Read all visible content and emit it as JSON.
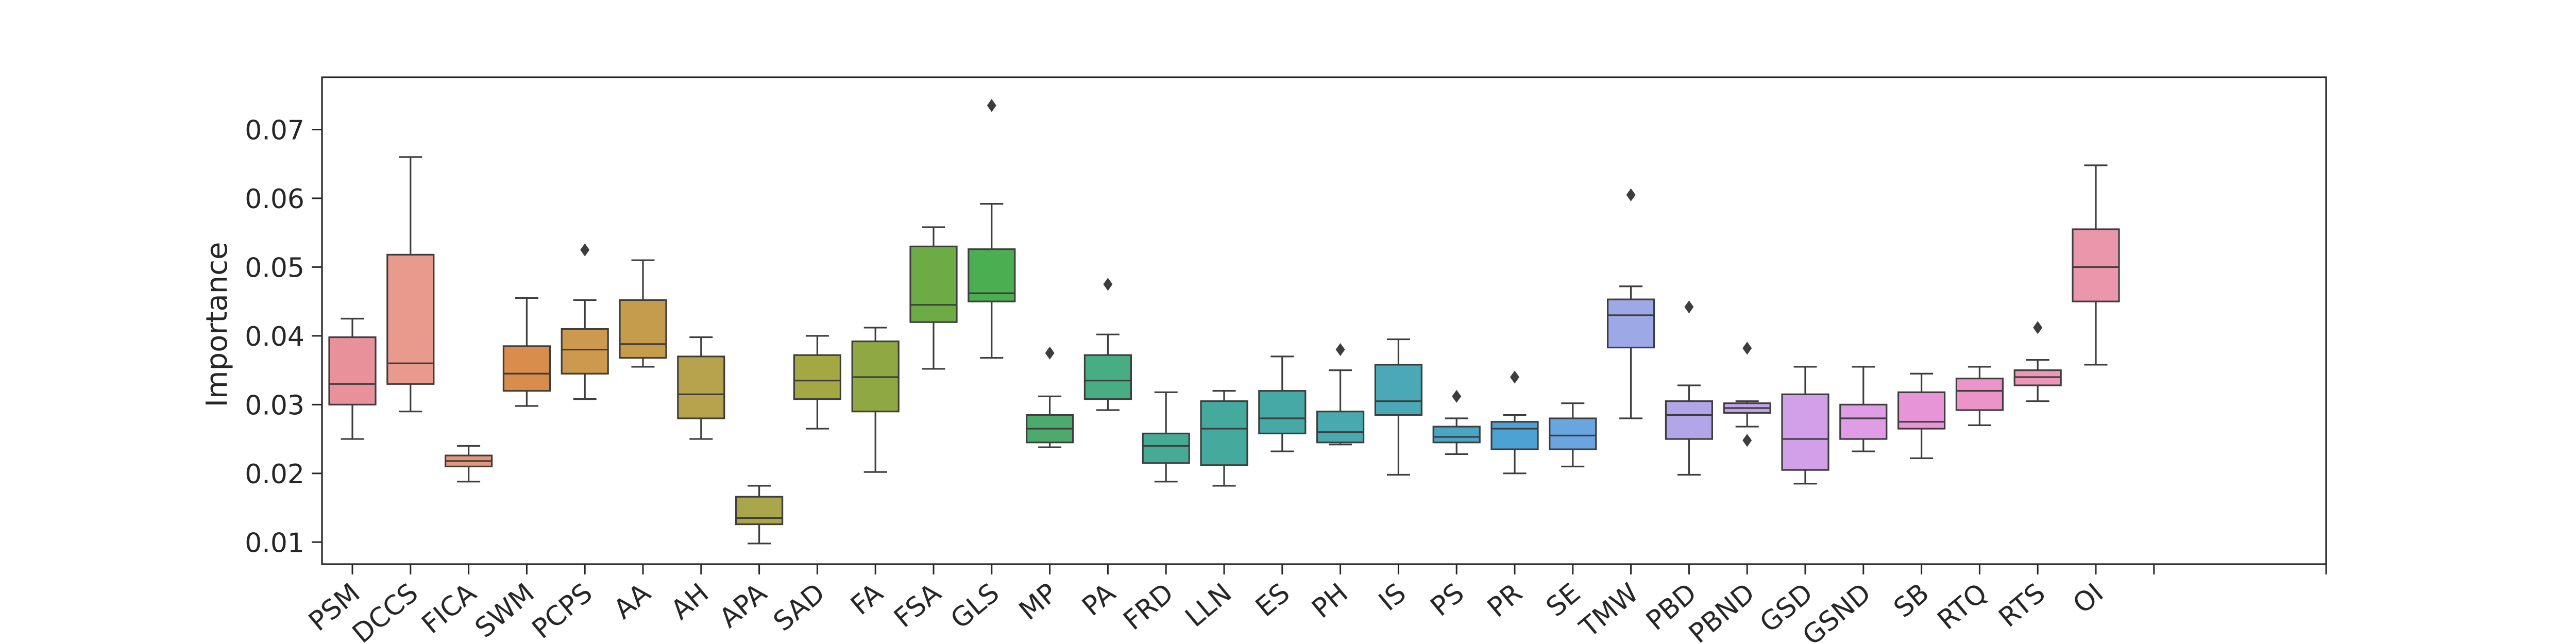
{
  "chart_data": {
    "type": "box",
    "ylabel": "Importance",
    "xlabel": "",
    "ylim": [
      0.0068,
      0.0776
    ],
    "yticks": [
      0.01,
      0.02,
      0.03,
      0.04,
      0.05,
      0.06,
      0.07
    ],
    "grid": false,
    "categories": [
      {
        "name": "PSM",
        "q1": 0.03,
        "median": 0.033,
        "q3": 0.0398,
        "wlo": 0.025,
        "whi": 0.0425,
        "fliers": [],
        "color": "#e8919b"
      },
      {
        "name": "DCCS",
        "q1": 0.033,
        "median": 0.036,
        "q3": 0.0518,
        "wlo": 0.029,
        "whi": 0.066,
        "fliers": [],
        "color": "#e89a8d"
      },
      {
        "name": "FICA",
        "q1": 0.021,
        "median": 0.0218,
        "q3": 0.0226,
        "wlo": 0.0188,
        "whi": 0.024,
        "fliers": [],
        "color": "#e2977a"
      },
      {
        "name": "SWM",
        "q1": 0.032,
        "median": 0.0345,
        "q3": 0.0385,
        "wlo": 0.0298,
        "whi": 0.0455,
        "fliers": [],
        "color": "#d98d4c"
      },
      {
        "name": "PCPS",
        "q1": 0.0345,
        "median": 0.038,
        "q3": 0.041,
        "wlo": 0.0308,
        "whi": 0.0452,
        "fliers": [
          0.0525
        ],
        "color": "#cc994f"
      },
      {
        "name": "AA",
        "q1": 0.0368,
        "median": 0.0388,
        "q3": 0.0452,
        "wlo": 0.0355,
        "whi": 0.051,
        "fliers": [],
        "color": "#c59c4b"
      },
      {
        "name": "AH",
        "q1": 0.028,
        "median": 0.0315,
        "q3": 0.037,
        "wlo": 0.025,
        "whi": 0.0398,
        "fliers": [],
        "color": "#b7a24e"
      },
      {
        "name": "APA",
        "q1": 0.0126,
        "median": 0.0135,
        "q3": 0.0166,
        "wlo": 0.0098,
        "whi": 0.0182,
        "fliers": [],
        "color": "#aaa64c"
      },
      {
        "name": "SAD",
        "q1": 0.0308,
        "median": 0.0335,
        "q3": 0.0372,
        "wlo": 0.0265,
        "whi": 0.04,
        "fliers": [],
        "color": "#a3a843"
      },
      {
        "name": "FA",
        "q1": 0.029,
        "median": 0.034,
        "q3": 0.0392,
        "wlo": 0.0202,
        "whi": 0.0412,
        "fliers": [],
        "color": "#8fa844"
      },
      {
        "name": "FSA",
        "q1": 0.042,
        "median": 0.0445,
        "q3": 0.053,
        "wlo": 0.0352,
        "whi": 0.0558,
        "fliers": [],
        "color": "#6dab45"
      },
      {
        "name": "GLS",
        "q1": 0.045,
        "median": 0.0462,
        "q3": 0.0526,
        "wlo": 0.0368,
        "whi": 0.0592,
        "fliers": [
          0.0735
        ],
        "color": "#4bae51"
      },
      {
        "name": "MP",
        "q1": 0.0245,
        "median": 0.0265,
        "q3": 0.0285,
        "wlo": 0.0238,
        "whi": 0.0312,
        "fliers": [
          0.0375
        ],
        "color": "#4baa6c"
      },
      {
        "name": "PA",
        "q1": 0.0308,
        "median": 0.0335,
        "q3": 0.0372,
        "wlo": 0.0292,
        "whi": 0.0402,
        "fliers": [
          0.0475
        ],
        "color": "#48ad82"
      },
      {
        "name": "FRD",
        "q1": 0.0215,
        "median": 0.024,
        "q3": 0.0258,
        "wlo": 0.0188,
        "whi": 0.0318,
        "fliers": [],
        "color": "#47aa94"
      },
      {
        "name": "LLN",
        "q1": 0.0212,
        "median": 0.0265,
        "q3": 0.0305,
        "wlo": 0.0182,
        "whi": 0.032,
        "fliers": [],
        "color": "#44aa9d"
      },
      {
        "name": "ES",
        "q1": 0.0258,
        "median": 0.028,
        "q3": 0.032,
        "wlo": 0.0232,
        "whi": 0.037,
        "fliers": [],
        "color": "#46a9a5"
      },
      {
        "name": "PH",
        "q1": 0.0245,
        "median": 0.026,
        "q3": 0.029,
        "wlo": 0.0242,
        "whi": 0.035,
        "fliers": [
          0.038
        ],
        "color": "#48a9ae"
      },
      {
        "name": "IS",
        "q1": 0.0285,
        "median": 0.0305,
        "q3": 0.0358,
        "wlo": 0.0198,
        "whi": 0.0395,
        "fliers": [],
        "color": "#4aa8b7"
      },
      {
        "name": "PS",
        "q1": 0.0245,
        "median": 0.0253,
        "q3": 0.0268,
        "wlo": 0.0228,
        "whi": 0.028,
        "fliers": [
          0.0312
        ],
        "color": "#4aa6c4"
      },
      {
        "name": "PR",
        "q1": 0.0235,
        "median": 0.0265,
        "q3": 0.0275,
        "wlo": 0.02,
        "whi": 0.0285,
        "fliers": [
          0.034
        ],
        "color": "#4ca2d3"
      },
      {
        "name": "SE",
        "q1": 0.0235,
        "median": 0.0255,
        "q3": 0.028,
        "wlo": 0.021,
        "whi": 0.0302,
        "fliers": [],
        "color": "#6aa5e0"
      },
      {
        "name": "TMW",
        "q1": 0.0383,
        "median": 0.043,
        "q3": 0.0453,
        "wlo": 0.028,
        "whi": 0.0472,
        "fliers": [
          0.0605
        ],
        "color": "#9da8e6"
      },
      {
        "name": "PBD",
        "q1": 0.025,
        "median": 0.0285,
        "q3": 0.0305,
        "wlo": 0.0198,
        "whi": 0.0328,
        "fliers": [
          0.0442
        ],
        "color": "#b3a6e8"
      },
      {
        "name": "PBND",
        "q1": 0.0288,
        "median": 0.0295,
        "q3": 0.0302,
        "wlo": 0.0268,
        "whi": 0.0305,
        "fliers": [
          0.0382,
          0.0248
        ],
        "color": "#c3a2e8"
      },
      {
        "name": "GSD",
        "q1": 0.0205,
        "median": 0.025,
        "q3": 0.0315,
        "wlo": 0.0185,
        "whi": 0.0355,
        "fliers": [],
        "color": "#d2a0e8"
      },
      {
        "name": "GSND",
        "q1": 0.025,
        "median": 0.028,
        "q3": 0.03,
        "wlo": 0.0232,
        "whi": 0.0355,
        "fliers": [],
        "color": "#de9de4"
      },
      {
        "name": "SB",
        "q1": 0.0265,
        "median": 0.0275,
        "q3": 0.0318,
        "wlo": 0.0222,
        "whi": 0.0345,
        "fliers": [],
        "color": "#e895d8"
      },
      {
        "name": "RTQ",
        "q1": 0.0292,
        "median": 0.032,
        "q3": 0.0338,
        "wlo": 0.027,
        "whi": 0.0355,
        "fliers": [],
        "color": "#ec93c8"
      },
      {
        "name": "RTS",
        "q1": 0.0328,
        "median": 0.034,
        "q3": 0.035,
        "wlo": 0.0305,
        "whi": 0.0365,
        "fliers": [
          0.0412
        ],
        "color": "#ec97b8"
      },
      {
        "name": "OI",
        "q1": 0.045,
        "median": 0.05,
        "q3": 0.0555,
        "wlo": 0.0358,
        "whi": 0.0648,
        "fliers": [],
        "color": "#ea96ab"
      }
    ]
  }
}
